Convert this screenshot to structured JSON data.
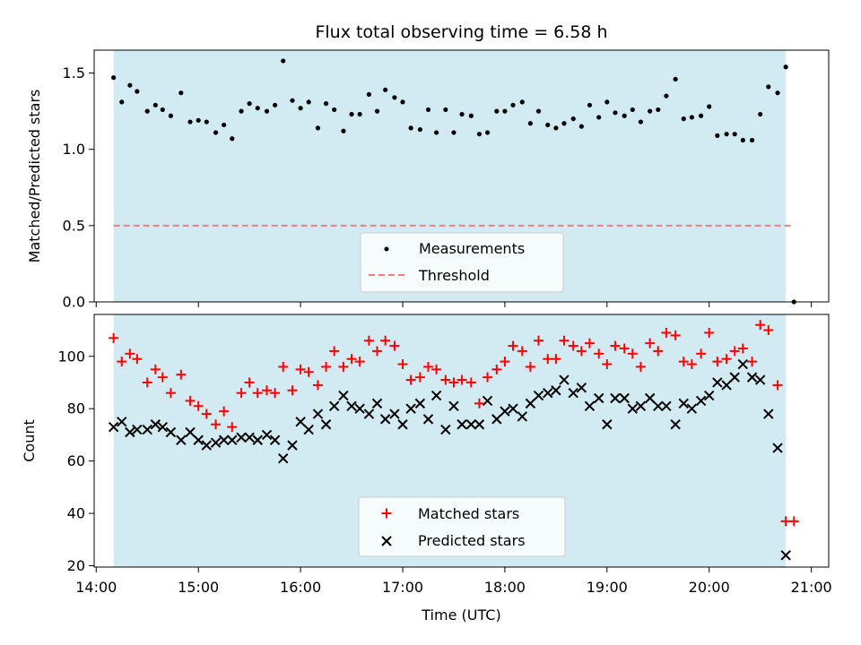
{
  "chart_data": [
    {
      "type": "scatter",
      "title": "Flux total observing time = 6.58 h",
      "ylabel": "Matched/Predicted stars",
      "xlabel": "",
      "ylim": [
        0,
        1.65
      ],
      "yticks": [
        "0.0",
        "0.5",
        "1.0",
        "1.5"
      ],
      "ytick_values": [
        0,
        0.5,
        1.0,
        1.5
      ],
      "x_unit": "hours UTC",
      "observing_window": [
        14.17,
        20.75
      ],
      "series": [
        {
          "name": "Measurements",
          "marker": "dot",
          "color": "#000000",
          "x": [
            14.17,
            14.25,
            14.33,
            14.4,
            14.5,
            14.58,
            14.65,
            14.73,
            14.83,
            14.92,
            15.0,
            15.08,
            15.17,
            15.25,
            15.33,
            15.42,
            15.5,
            15.58,
            15.67,
            15.75,
            15.83,
            15.92,
            16.0,
            16.08,
            16.17,
            16.25,
            16.33,
            16.42,
            16.5,
            16.58,
            16.67,
            16.75,
            16.83,
            16.92,
            17.0,
            17.08,
            17.17,
            17.25,
            17.33,
            17.42,
            17.5,
            17.58,
            17.67,
            17.75,
            17.83,
            17.92,
            18.0,
            18.08,
            18.17,
            18.25,
            18.33,
            18.42,
            18.5,
            18.58,
            18.67,
            18.75,
            18.83,
            18.92,
            19.0,
            19.08,
            19.17,
            19.25,
            19.33,
            19.42,
            19.5,
            19.58,
            19.67,
            19.75,
            19.83,
            19.92,
            20.0,
            20.08,
            20.17,
            20.25,
            20.33,
            20.42,
            20.5,
            20.58,
            20.67,
            20.75,
            20.83
          ],
          "y": [
            1.47,
            1.31,
            1.42,
            1.38,
            1.25,
            1.29,
            1.26,
            1.22,
            1.37,
            1.18,
            1.19,
            1.18,
            1.11,
            1.16,
            1.07,
            1.25,
            1.3,
            1.27,
            1.25,
            1.29,
            1.58,
            1.32,
            1.27,
            1.31,
            1.14,
            1.3,
            1.26,
            1.12,
            1.23,
            1.23,
            1.36,
            1.25,
            1.39,
            1.34,
            1.31,
            1.14,
            1.13,
            1.26,
            1.11,
            1.26,
            1.11,
            1.23,
            1.22,
            1.1,
            1.11,
            1.25,
            1.25,
            1.29,
            1.31,
            1.17,
            1.25,
            1.16,
            1.14,
            1.17,
            1.2,
            1.15,
            1.29,
            1.21,
            1.31,
            1.24,
            1.22,
            1.26,
            1.18,
            1.25,
            1.26,
            1.35,
            1.46,
            1.2,
            1.21,
            1.22,
            1.28,
            1.09,
            1.1,
            1.1,
            1.06,
            1.06,
            1.23,
            1.41,
            1.37,
            1.54,
            0.0
          ]
        },
        {
          "name": "Threshold",
          "type": "line",
          "style": "dashed",
          "color": "#f08080",
          "x": [
            14.17,
            20.83
          ],
          "y": [
            0.5,
            0.5
          ]
        }
      ],
      "legend": {
        "placement": "lower-center",
        "entries": [
          "Measurements",
          "Threshold"
        ]
      }
    },
    {
      "type": "scatter",
      "title": "",
      "ylabel": "Count",
      "xlabel": "Time (UTC)",
      "ylim": [
        19.5,
        116
      ],
      "yticks": [
        "20",
        "40",
        "60",
        "80",
        "100"
      ],
      "ytick_values": [
        20,
        40,
        60,
        80,
        100
      ],
      "xlim": [
        13.98,
        21.17
      ],
      "xticks": [
        "14:00",
        "15:00",
        "16:00",
        "17:00",
        "18:00",
        "19:00",
        "20:00",
        "21:00"
      ],
      "xtick_values": [
        14,
        15,
        16,
        17,
        18,
        19,
        20,
        21
      ],
      "x_unit": "hours UTC",
      "observing_window": [
        14.17,
        20.75
      ],
      "series": [
        {
          "name": "Matched stars",
          "marker": "plus",
          "color": "#ff0000",
          "x": [
            14.17,
            14.25,
            14.33,
            14.4,
            14.5,
            14.58,
            14.65,
            14.73,
            14.83,
            14.92,
            15.0,
            15.08,
            15.17,
            15.25,
            15.33,
            15.42,
            15.5,
            15.58,
            15.67,
            15.75,
            15.83,
            15.92,
            16.0,
            16.08,
            16.17,
            16.25,
            16.33,
            16.42,
            16.5,
            16.58,
            16.67,
            16.75,
            16.83,
            16.92,
            17.0,
            17.08,
            17.17,
            17.25,
            17.33,
            17.42,
            17.5,
            17.58,
            17.67,
            17.75,
            17.83,
            17.92,
            18.0,
            18.08,
            18.17,
            18.25,
            18.33,
            18.42,
            18.5,
            18.58,
            18.67,
            18.75,
            18.83,
            18.92,
            19.0,
            19.08,
            19.17,
            19.25,
            19.33,
            19.42,
            19.5,
            19.58,
            19.67,
            19.75,
            19.83,
            19.92,
            20.0,
            20.08,
            20.17,
            20.25,
            20.33,
            20.42,
            20.5,
            20.58,
            20.67,
            20.75,
            20.83
          ],
          "y": [
            107,
            98,
            101,
            99,
            90,
            95,
            92,
            86,
            93,
            83,
            81,
            78,
            74,
            79,
            73,
            86,
            90,
            86,
            87,
            86,
            96,
            87,
            95,
            94,
            89,
            96,
            102,
            96,
            99,
            98,
            106,
            102,
            106,
            104,
            97,
            91,
            92,
            96,
            95,
            91,
            90,
            91,
            90,
            82,
            92,
            95,
            98,
            104,
            102,
            96,
            106,
            99,
            99,
            106,
            104,
            102,
            105,
            101,
            97,
            104,
            103,
            101,
            96,
            105,
            102,
            109,
            108,
            98,
            97,
            101,
            109,
            98,
            99,
            102,
            103,
            98,
            112,
            110,
            89,
            37,
            37
          ]
        },
        {
          "name": "Predicted stars",
          "marker": "x",
          "color": "#000000",
          "x": [
            14.17,
            14.25,
            14.33,
            14.4,
            14.5,
            14.58,
            14.65,
            14.73,
            14.83,
            14.92,
            15.0,
            15.08,
            15.17,
            15.25,
            15.33,
            15.42,
            15.5,
            15.58,
            15.67,
            15.75,
            15.83,
            15.92,
            16.0,
            16.08,
            16.17,
            16.25,
            16.33,
            16.42,
            16.5,
            16.58,
            16.67,
            16.75,
            16.83,
            16.92,
            17.0,
            17.08,
            17.17,
            17.25,
            17.33,
            17.42,
            17.5,
            17.58,
            17.67,
            17.75,
            17.83,
            17.92,
            18.0,
            18.08,
            18.17,
            18.25,
            18.33,
            18.42,
            18.5,
            18.58,
            18.67,
            18.75,
            18.83,
            18.92,
            19.0,
            19.08,
            19.17,
            19.25,
            19.33,
            19.42,
            19.5,
            19.58,
            19.67,
            19.75,
            19.83,
            19.92,
            20.0,
            20.08,
            20.17,
            20.25,
            20.33,
            20.42,
            20.5,
            20.58,
            20.67,
            20.75
          ],
          "y": [
            73,
            75,
            71,
            72,
            72,
            74,
            73,
            71,
            68,
            71,
            68,
            66,
            67,
            68,
            68,
            69,
            69,
            68,
            70,
            68,
            61,
            66,
            75,
            72,
            78,
            74,
            81,
            85,
            81,
            80,
            78,
            82,
            76,
            78,
            74,
            80,
            82,
            76,
            85,
            72,
            81,
            74,
            74,
            74,
            83,
            76,
            79,
            80,
            77,
            82,
            85,
            86,
            87,
            91,
            86,
            88,
            81,
            84,
            74,
            84,
            84,
            80,
            81,
            84,
            81,
            81,
            74,
            82,
            80,
            83,
            85,
            90,
            89,
            92,
            97,
            92,
            91,
            78,
            65,
            24
          ]
        }
      ],
      "legend": {
        "placement": "lower-center",
        "entries": [
          "Matched stars",
          "Predicted stars"
        ]
      }
    }
  ],
  "colors": {
    "observing_window": "#add8e6",
    "threshold": "#f08080",
    "matched": "#ff0000",
    "predicted": "#000000",
    "measurement": "#000000"
  }
}
